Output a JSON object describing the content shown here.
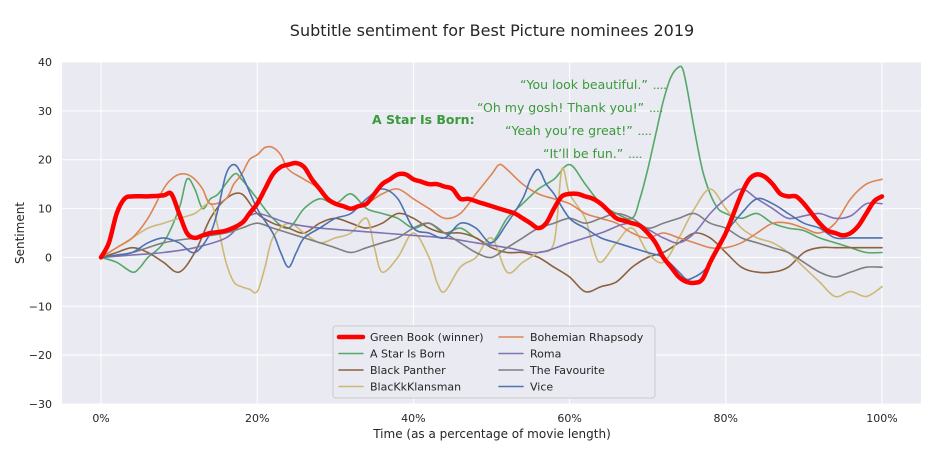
{
  "chart_data": {
    "type": "line",
    "title": "Subtitle sentiment for Best Picture nominees 2019",
    "xlabel": "Time (as a percentage of movie length)",
    "ylabel": "Sentiment",
    "xlim": [
      -0.05,
      1.05
    ],
    "ylim": [
      -30,
      40
    ],
    "xticks": [
      0,
      0.2,
      0.4,
      0.6,
      0.8,
      1.0
    ],
    "xtick_labels": [
      "0%",
      "20%",
      "40%",
      "60%",
      "80%",
      "100%"
    ],
    "yticks": [
      -30,
      -20,
      -10,
      0,
      10,
      20,
      30,
      40
    ],
    "ytick_labels": [
      "−30",
      "−20",
      "−10",
      "0",
      "10",
      "20",
      "30",
      "40"
    ],
    "grid": true,
    "background": "#eaeaf2",
    "legend_position": "bottom-center",
    "legend_columns": 2,
    "series": [
      {
        "name": "Green Book (winner)",
        "color": "#ff0000",
        "bold": true,
        "x": [
          0,
          0.01,
          0.02,
          0.03,
          0.04,
          0.06,
          0.08,
          0.09,
          0.1,
          0.11,
          0.12,
          0.13,
          0.14,
          0.16,
          0.18,
          0.19,
          0.2,
          0.21,
          0.22,
          0.23,
          0.24,
          0.25,
          0.26,
          0.27,
          0.28,
          0.29,
          0.3,
          0.31,
          0.32,
          0.33,
          0.34,
          0.35,
          0.36,
          0.37,
          0.38,
          0.39,
          0.4,
          0.41,
          0.42,
          0.43,
          0.44,
          0.45,
          0.46,
          0.47,
          0.48,
          0.49,
          0.5,
          0.51,
          0.52,
          0.53,
          0.54,
          0.55,
          0.56,
          0.57,
          0.58,
          0.59,
          0.6,
          0.61,
          0.62,
          0.63,
          0.64,
          0.65,
          0.66,
          0.67,
          0.68,
          0.69,
          0.7,
          0.71,
          0.72,
          0.73,
          0.74,
          0.75,
          0.76,
          0.77,
          0.78,
          0.79,
          0.8,
          0.81,
          0.82,
          0.83,
          0.84,
          0.85,
          0.86,
          0.87,
          0.88,
          0.89,
          0.9,
          0.91,
          0.92,
          0.93,
          0.94,
          0.95,
          0.96,
          0.97,
          0.98,
          0.99,
          1.0
        ],
        "y": [
          0,
          3,
          9,
          12,
          12.5,
          12.5,
          12.7,
          13,
          9,
          5,
          4,
          4.5,
          5,
          5.5,
          7,
          9,
          11,
          14,
          17,
          18.5,
          19,
          19.3,
          18.5,
          16,
          14,
          12,
          11,
          10.5,
          10,
          10.5,
          11,
          13,
          15,
          16,
          17,
          17,
          16,
          15.5,
          15,
          15,
          14.5,
          14,
          12,
          12,
          11.5,
          11,
          10.5,
          10,
          9.5,
          9,
          8,
          7,
          6,
          7,
          10,
          12.5,
          13,
          13,
          12.5,
          12,
          11,
          9.5,
          8,
          7.5,
          7,
          6.5,
          5,
          3,
          0,
          -2,
          -4,
          -5,
          -5.2,
          -4.5,
          -1,
          2,
          5,
          9,
          13,
          16,
          17,
          16.5,
          15,
          13,
          12.5,
          12.5,
          11,
          9,
          7,
          5.5,
          5,
          4.5,
          5,
          6.5,
          9,
          11.5,
          12.5
        ]
      },
      {
        "name": "A Star Is Born",
        "color": "#55a868",
        "bold": false,
        "x": [
          0,
          0.02,
          0.04,
          0.05,
          0.06,
          0.08,
          0.1,
          0.11,
          0.12,
          0.13,
          0.14,
          0.15,
          0.17,
          0.18,
          0.2,
          0.22,
          0.24,
          0.26,
          0.28,
          0.3,
          0.32,
          0.34,
          0.36,
          0.38,
          0.4,
          0.42,
          0.44,
          0.46,
          0.48,
          0.5,
          0.52,
          0.54,
          0.56,
          0.58,
          0.6,
          0.62,
          0.64,
          0.66,
          0.68,
          0.69,
          0.7,
          0.71,
          0.72,
          0.73,
          0.74,
          0.745,
          0.75,
          0.76,
          0.77,
          0.78,
          0.79,
          0.8,
          0.82,
          0.84,
          0.86,
          0.88,
          0.9,
          0.92,
          0.94,
          0.96,
          0.98,
          1.0
        ],
        "y": [
          0,
          -1,
          -3,
          -2,
          0,
          3,
          10,
          16,
          14,
          10,
          12,
          13,
          17,
          16,
          12,
          8,
          6,
          10,
          12,
          11,
          13,
          10,
          9,
          8,
          6,
          7,
          5,
          6,
          4,
          3,
          8,
          11,
          14,
          16,
          19,
          15,
          11,
          9,
          8,
          12,
          18,
          25,
          32,
          37,
          39,
          38.5,
          35,
          26,
          18,
          13,
          10,
          9,
          8,
          9,
          7,
          6,
          5.5,
          4,
          3,
          2,
          1,
          1
        ]
      },
      {
        "name": "Black Panther",
        "color": "#8c613c",
        "bold": false,
        "x": [
          0,
          0.02,
          0.04,
          0.06,
          0.08,
          0.1,
          0.12,
          0.14,
          0.16,
          0.18,
          0.2,
          0.22,
          0.24,
          0.26,
          0.28,
          0.3,
          0.32,
          0.34,
          0.36,
          0.38,
          0.4,
          0.42,
          0.44,
          0.46,
          0.48,
          0.5,
          0.52,
          0.54,
          0.56,
          0.58,
          0.6,
          0.62,
          0.64,
          0.66,
          0.68,
          0.7,
          0.72,
          0.74,
          0.76,
          0.78,
          0.8,
          0.82,
          0.84,
          0.86,
          0.88,
          0.9,
          0.92,
          0.94,
          0.96,
          0.98,
          1.0
        ],
        "y": [
          0,
          1,
          2,
          1,
          -1,
          -3,
          1,
          8,
          12,
          13,
          9,
          7,
          6,
          5,
          7,
          8,
          7,
          6,
          7,
          9,
          8,
          6,
          5,
          5,
          4,
          2,
          1,
          1,
          0,
          -2,
          -4,
          -7,
          -6,
          -5,
          -2,
          0,
          1,
          3,
          5,
          4,
          1,
          -2,
          -3,
          -3,
          -2,
          1,
          2,
          2,
          2,
          2,
          2
        ]
      },
      {
        "name": "BlacKkKlansman",
        "color": "#ccb974",
        "bold": false,
        "x": [
          0,
          0.02,
          0.04,
          0.06,
          0.08,
          0.1,
          0.12,
          0.14,
          0.15,
          0.16,
          0.17,
          0.18,
          0.19,
          0.2,
          0.21,
          0.22,
          0.24,
          0.26,
          0.28,
          0.3,
          0.32,
          0.34,
          0.35,
          0.36,
          0.38,
          0.4,
          0.42,
          0.43,
          0.44,
          0.46,
          0.48,
          0.5,
          0.52,
          0.54,
          0.56,
          0.58,
          0.59,
          0.6,
          0.62,
          0.63,
          0.64,
          0.66,
          0.68,
          0.7,
          0.72,
          0.74,
          0.76,
          0.78,
          0.8,
          0.82,
          0.84,
          0.86,
          0.88,
          0.9,
          0.92,
          0.94,
          0.96,
          0.98,
          1.0
        ],
        "y": [
          0,
          2,
          4,
          6,
          7,
          8,
          9,
          11,
          6,
          -1,
          -5,
          -6,
          -6.5,
          -7,
          -2,
          4,
          7,
          5,
          3,
          4,
          5,
          8,
          2,
          -3,
          0,
          5,
          0,
          -5,
          -7,
          -2,
          0,
          4,
          -3,
          -1,
          1,
          3,
          18,
          13,
          8,
          2,
          -1,
          3,
          6,
          1,
          -1,
          4,
          10,
          14,
          10,
          6,
          4,
          3,
          1,
          -2,
          -5,
          -8,
          -7,
          -8,
          -6
        ]
      },
      {
        "name": "Bohemian Rhapsody",
        "color": "#dd8452",
        "bold": false,
        "x": [
          0,
          0.02,
          0.04,
          0.06,
          0.08,
          0.09,
          0.1,
          0.11,
          0.12,
          0.13,
          0.14,
          0.16,
          0.17,
          0.18,
          0.19,
          0.2,
          0.21,
          0.22,
          0.23,
          0.24,
          0.26,
          0.28,
          0.3,
          0.32,
          0.34,
          0.36,
          0.38,
          0.4,
          0.42,
          0.44,
          0.46,
          0.48,
          0.5,
          0.51,
          0.52,
          0.54,
          0.56,
          0.58,
          0.6,
          0.62,
          0.64,
          0.66,
          0.68,
          0.7,
          0.72,
          0.74,
          0.76,
          0.78,
          0.8,
          0.82,
          0.84,
          0.86,
          0.88,
          0.9,
          0.92,
          0.94,
          0.96,
          0.98,
          1.0
        ],
        "y": [
          0,
          2,
          4,
          8,
          14,
          16,
          17,
          17,
          16,
          14,
          11,
          12,
          15,
          17,
          20,
          21,
          22.5,
          22.5,
          21,
          18,
          16,
          14,
          11,
          10,
          11,
          13,
          14,
          12,
          10,
          8,
          9,
          13,
          17,
          19,
          18,
          15,
          13,
          12,
          11,
          9,
          8,
          7,
          5,
          4,
          5,
          4,
          3,
          2,
          2,
          3,
          5,
          7,
          7,
          6,
          5,
          7,
          12,
          15,
          16
        ]
      },
      {
        "name": "Roma",
        "color": "#8172b3",
        "bold": false,
        "x": [
          0,
          0.04,
          0.08,
          0.12,
          0.16,
          0.18,
          0.2,
          0.24,
          0.28,
          0.32,
          0.36,
          0.4,
          0.44,
          0.48,
          0.52,
          0.56,
          0.6,
          0.64,
          0.68,
          0.72,
          0.74,
          0.76,
          0.78,
          0.8,
          0.82,
          0.84,
          0.86,
          0.88,
          0.9,
          0.92,
          0.94,
          0.96,
          0.98,
          1.0
        ],
        "y": [
          0,
          0.5,
          1,
          2,
          4,
          7,
          9,
          7,
          6,
          5.5,
          5,
          4.5,
          4,
          3,
          2,
          1,
          3,
          5,
          7,
          4,
          3,
          5,
          9,
          12,
          14,
          12,
          10,
          8,
          8.5,
          9,
          8,
          8.5,
          11,
          11
        ]
      },
      {
        "name": "The Favourite",
        "color": "#7f7f7f",
        "bold": false,
        "x": [
          0,
          0.04,
          0.08,
          0.12,
          0.16,
          0.18,
          0.2,
          0.22,
          0.24,
          0.26,
          0.28,
          0.3,
          0.32,
          0.34,
          0.36,
          0.38,
          0.4,
          0.42,
          0.44,
          0.46,
          0.48,
          0.5,
          0.52,
          0.54,
          0.56,
          0.58,
          0.6,
          0.62,
          0.64,
          0.66,
          0.68,
          0.7,
          0.72,
          0.74,
          0.76,
          0.78,
          0.8,
          0.82,
          0.84,
          0.86,
          0.88,
          0.9,
          0.92,
          0.94,
          0.96,
          0.98,
          1.0
        ],
        "y": [
          0,
          1,
          3,
          4,
          5,
          6,
          7,
          6,
          5,
          4,
          3,
          2,
          1,
          2,
          3,
          4,
          6,
          7,
          5,
          3,
          1,
          0,
          2,
          4,
          6,
          7,
          8,
          7,
          8,
          9,
          8,
          6,
          7,
          8,
          9,
          7,
          6,
          4,
          3,
          2,
          1,
          -1,
          -3,
          -4,
          -3,
          -2,
          -2
        ]
      },
      {
        "name": "Vice",
        "color": "#4c72b0",
        "bold": false,
        "x": [
          0,
          0.02,
          0.04,
          0.06,
          0.08,
          0.1,
          0.12,
          0.14,
          0.15,
          0.16,
          0.17,
          0.18,
          0.2,
          0.22,
          0.23,
          0.24,
          0.25,
          0.26,
          0.28,
          0.3,
          0.32,
          0.34,
          0.36,
          0.38,
          0.4,
          0.42,
          0.44,
          0.46,
          0.48,
          0.5,
          0.52,
          0.54,
          0.55,
          0.56,
          0.57,
          0.58,
          0.6,
          0.62,
          0.64,
          0.66,
          0.68,
          0.7,
          0.72,
          0.74,
          0.75,
          0.76,
          0.77,
          0.78,
          0.8,
          0.82,
          0.84,
          0.86,
          0.88,
          0.9,
          0.92,
          0.94,
          0.96,
          0.98,
          1.0
        ],
        "y": [
          0,
          0.5,
          1,
          3,
          4,
          3,
          1,
          5,
          10,
          17,
          19,
          17,
          10,
          5,
          1,
          -2,
          1,
          4,
          6,
          8,
          9,
          12,
          14,
          12,
          6,
          5,
          4,
          7,
          6,
          3,
          7,
          12,
          16,
          18,
          15,
          13,
          8,
          6,
          4,
          3,
          2,
          1,
          0,
          -3,
          -4.5,
          -4,
          -3,
          -1,
          5,
          9,
          12,
          11,
          9,
          7,
          6,
          4,
          4,
          4,
          4
        ]
      }
    ],
    "annotations": {
      "group_label": "A Star Is Born:",
      "quotes": [
        "“You look beautiful.”",
        "“Oh my gosh! Thank you!”",
        "“Yeah you’re great!”",
        "“It’ll be fun.”"
      ],
      "color": "#3a9a3a"
    }
  }
}
